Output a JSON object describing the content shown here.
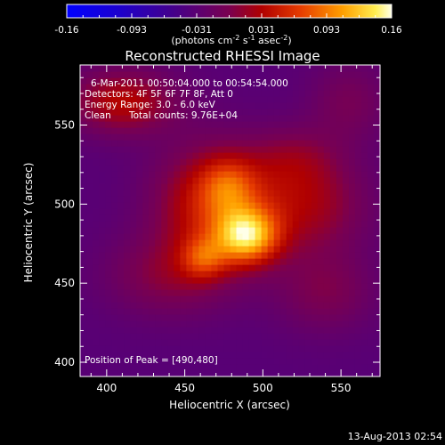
{
  "chart_data": {
    "type": "heatmap",
    "title": "Reconstructed RHESSI Image",
    "xlabel": "Heliocentric X (arcsec)",
    "ylabel": "Heliocentric Y (arcsec)",
    "xlim": [
      383,
      575
    ],
    "ylim": [
      391,
      588
    ],
    "x_ticks": [
      400,
      450,
      500,
      550
    ],
    "y_ticks": [
      400,
      450,
      500,
      550
    ],
    "colorbar": {
      "range": [
        -0.16,
        0.16
      ],
      "tick_labels": [
        "-0.16",
        "-0.093",
        "-0.031",
        "0.031",
        "0.093",
        "0.16"
      ],
      "unit_label": "(photons cm",
      "unit_sup1": "-2",
      "unit_mid": " s",
      "unit_sup2": "-1",
      "unit_mid2": " asec",
      "unit_sup3": "-2",
      "unit_end": ")"
    },
    "annotations": {
      "time": "6-Mar-2011 00:50:04.000 to 00:54:54.000",
      "detectors": "Detectors: 4F 5F 6F 7F 8F, Att 0",
      "energy": "Energy Range: 3.0 - 6.0 keV",
      "method": "Clean",
      "counts": "Total counts: 9.76E+04",
      "peak": "Position of Peak = [490,480]"
    },
    "peak": [
      490,
      480
    ],
    "sources": [
      {
        "x": 490,
        "y": 480,
        "amp": 0.13,
        "sx": 14,
        "sy": 12
      },
      {
        "x": 470,
        "y": 500,
        "amp": 0.09,
        "sx": 26,
        "sy": 26
      },
      {
        "x": 462,
        "y": 466,
        "amp": 0.06,
        "sx": 10,
        "sy": 9
      },
      {
        "x": 478,
        "y": 512,
        "amp": 0.05,
        "sx": 12,
        "sy": 12
      },
      {
        "x": 530,
        "y": 500,
        "amp": 0.055,
        "sx": 26,
        "sy": 22
      },
      {
        "x": 410,
        "y": 565,
        "amp": 0.07,
        "sx": 24,
        "sy": 14
      },
      {
        "x": 440,
        "y": 455,
        "amp": 0.04,
        "sx": 28,
        "sy": 18
      },
      {
        "x": 540,
        "y": 445,
        "amp": 0.035,
        "sx": 22,
        "sy": 18
      },
      {
        "x": 555,
        "y": 565,
        "amp": 0.03,
        "sx": 18,
        "sy": 18
      },
      {
        "x": 520,
        "y": 530,
        "amp": 0.03,
        "sx": 20,
        "sy": 14
      }
    ],
    "background": -0.035
  },
  "footer": {
    "date": "13-Aug-2013 02:54"
  }
}
